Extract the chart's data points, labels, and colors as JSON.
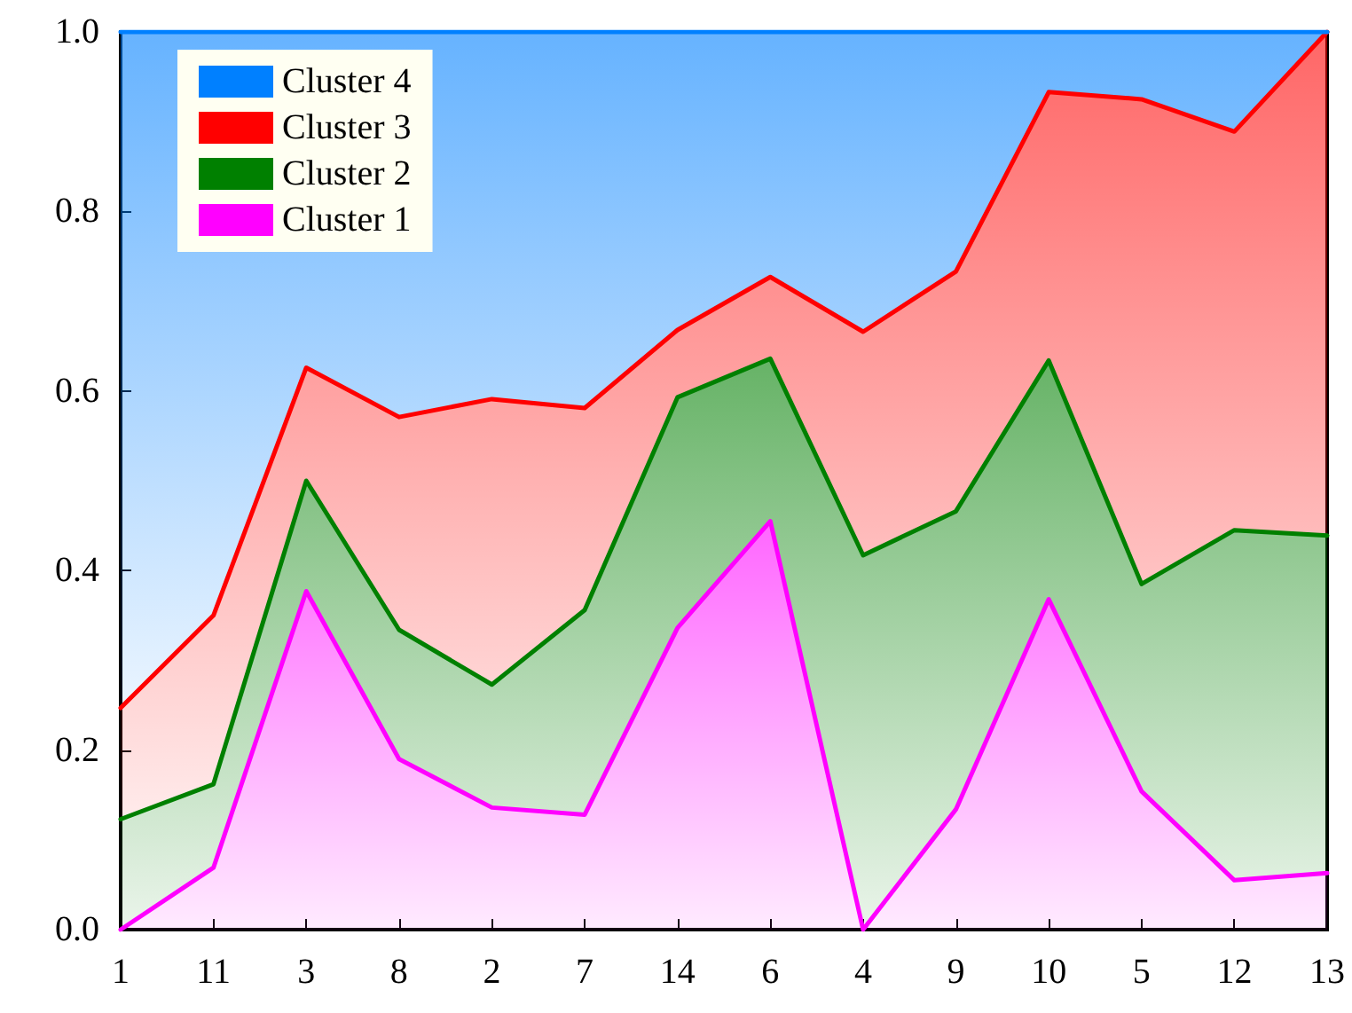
{
  "chart_data": {
    "type": "area",
    "stacked": true,
    "categories": [
      "1",
      "11",
      "3",
      "8",
      "2",
      "7",
      "14",
      "6",
      "4",
      "9",
      "10",
      "5",
      "12",
      "13"
    ],
    "series": [
      {
        "name": "Cluster 1",
        "color": "#ff00ff",
        "values": [
          0.0,
          0.069,
          0.377,
          0.19,
          0.136,
          0.128,
          0.336,
          0.455,
          0.0,
          0.134,
          0.368,
          0.154,
          0.055,
          0.063
        ]
      },
      {
        "name": "Cluster 2",
        "color": "#008000",
        "values": [
          0.123,
          0.093,
          0.123,
          0.144,
          0.137,
          0.228,
          0.257,
          0.181,
          0.417,
          0.332,
          0.266,
          0.231,
          0.39,
          0.376
        ]
      },
      {
        "name": "Cluster 3",
        "color": "#ff0000",
        "values": [
          0.124,
          0.188,
          0.126,
          0.237,
          0.318,
          0.225,
          0.075,
          0.091,
          0.249,
          0.267,
          0.299,
          0.54,
          0.444,
          0.561
        ]
      },
      {
        "name": "Cluster 4",
        "color": "#0080ff",
        "values": [
          0.753,
          0.65,
          0.374,
          0.429,
          0.409,
          0.419,
          0.332,
          0.273,
          0.334,
          0.267,
          0.067,
          0.075,
          0.111,
          0.0
        ]
      }
    ],
    "ylim": [
      0,
      1.0
    ],
    "yticks": [
      {
        "value": 0,
        "label": "0.0"
      },
      {
        "value": 0.2,
        "label": "0.2"
      },
      {
        "value": 0.4,
        "label": "0.4"
      },
      {
        "value": 0.6,
        "label": "0.6"
      },
      {
        "value": 0.8,
        "label": "0.8"
      },
      {
        "value": 1.0,
        "label": "1.0"
      }
    ],
    "grid": false,
    "legend": "top left",
    "marker": "none",
    "line_style": "solid"
  }
}
